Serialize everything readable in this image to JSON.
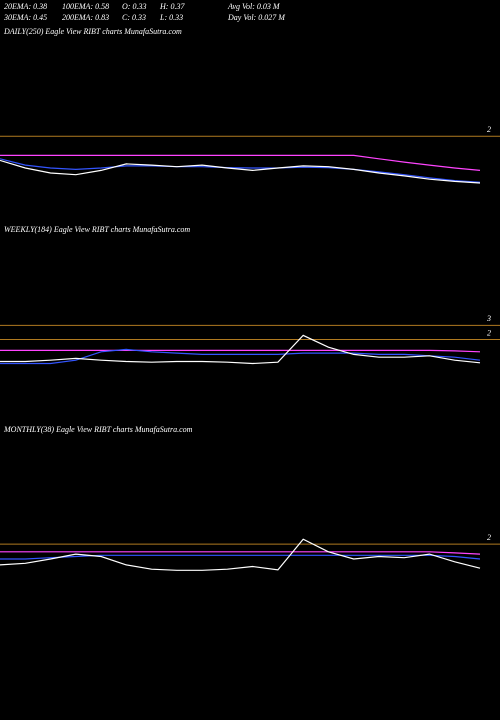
{
  "header": {
    "rows": [
      [
        "20EMA: 0.38",
        "100EMA: 0.58",
        "O: 0.33",
        "H: 0.37",
        "Avg Vol: 0.03 M"
      ],
      [
        "30EMA: 0.45",
        "200EMA: 0.83",
        "C: 0.33",
        "L: 0.33",
        "Day Vol: 0.027 M"
      ]
    ]
  },
  "chart_data": [
    {
      "type": "line",
      "title": "DAILY(250) Eagle   View  RIBT charts MunafaSutra.com",
      "categories": [
        null,
        null,
        null,
        null,
        null,
        null,
        null,
        null,
        null,
        null,
        null,
        null,
        null,
        null,
        null,
        null,
        null,
        null,
        null,
        null
      ],
      "log_scale": true,
      "ylim": [
        0.1,
        100
      ],
      "yticks": [
        2
      ],
      "grid": true,
      "grid_color": "#b07a20",
      "series": [
        {
          "color": "#ff44ff",
          "values": [
            0.92,
            0.92,
            0.92,
            0.92,
            0.92,
            0.92,
            0.92,
            0.92,
            0.92,
            0.92,
            0.92,
            0.92,
            0.92,
            0.92,
            0.92,
            0.8,
            0.7,
            0.62,
            0.55,
            0.5
          ]
        },
        {
          "color": "#3355ff",
          "values": [
            0.8,
            0.62,
            0.55,
            0.52,
            0.55,
            0.6,
            0.6,
            0.58,
            0.58,
            0.56,
            0.55,
            0.55,
            0.57,
            0.56,
            0.52,
            0.47,
            0.42,
            0.37,
            0.33,
            0.31
          ]
        },
        {
          "color": "#ffffff",
          "values": [
            0.75,
            0.55,
            0.45,
            0.42,
            0.5,
            0.65,
            0.62,
            0.58,
            0.62,
            0.55,
            0.5,
            0.55,
            0.6,
            0.58,
            0.52,
            0.45,
            0.4,
            0.35,
            0.32,
            0.3
          ]
        }
      ]
    },
    {
      "type": "line",
      "title": "WEEKLY(184) Eagle   View  RIBT charts MunafaSutra.com",
      "categories": [
        null,
        null,
        null,
        null,
        null,
        null,
        null,
        null,
        null,
        null,
        null,
        null,
        null,
        null,
        null,
        null,
        null,
        null,
        null,
        null
      ],
      "log_scale": true,
      "ylim": [
        0.35,
        35
      ],
      "yticks": [
        3,
        2
      ],
      "grid": true,
      "grid_color": "#b07a20",
      "series": [
        {
          "color": "#ff44ff",
          "values": [
            1.46,
            1.46,
            1.46,
            1.46,
            1.46,
            1.46,
            1.46,
            1.46,
            1.46,
            1.46,
            1.46,
            1.46,
            1.46,
            1.46,
            1.46,
            1.46,
            1.46,
            1.46,
            1.44,
            1.4
          ]
        },
        {
          "color": "#3355ff",
          "values": [
            1.0,
            1.0,
            1.0,
            1.1,
            1.4,
            1.5,
            1.4,
            1.35,
            1.3,
            1.3,
            1.3,
            1.3,
            1.35,
            1.35,
            1.35,
            1.3,
            1.3,
            1.25,
            1.2,
            1.1
          ]
        },
        {
          "color": "#ffffff",
          "values": [
            1.06,
            1.06,
            1.1,
            1.16,
            1.1,
            1.06,
            1.04,
            1.06,
            1.06,
            1.04,
            1.0,
            1.04,
            2.25,
            1.6,
            1.3,
            1.2,
            1.2,
            1.25,
            1.1,
            1.02
          ]
        }
      ]
    },
    {
      "type": "line",
      "title": "MONTHLY(38) Eagle   View  RIBT charts MunafaSutra.com",
      "categories": [
        null,
        null,
        null,
        null,
        null,
        null,
        null,
        null,
        null,
        null,
        null,
        null,
        null,
        null,
        null,
        null,
        null,
        null,
        null,
        null
      ],
      "log_scale": true,
      "ylim": [
        0.4,
        40
      ],
      "yticks": [
        2
      ],
      "grid": true,
      "grid_color": "#b07a20",
      "series": [
        {
          "color": "#ff44ff",
          "values": [
            1.6,
            1.6,
            1.6,
            1.6,
            1.6,
            1.6,
            1.6,
            1.6,
            1.6,
            1.6,
            1.6,
            1.6,
            1.6,
            1.6,
            1.6,
            1.6,
            1.6,
            1.6,
            1.55,
            1.5
          ]
        },
        {
          "color": "#3355ff",
          "values": [
            1.3,
            1.3,
            1.35,
            1.4,
            1.45,
            1.45,
            1.45,
            1.45,
            1.45,
            1.45,
            1.45,
            1.45,
            1.45,
            1.45,
            1.45,
            1.45,
            1.45,
            1.45,
            1.4,
            1.3
          ]
        },
        {
          "color": "#ffffff",
          "values": [
            1.1,
            1.15,
            1.3,
            1.5,
            1.4,
            1.1,
            0.97,
            0.94,
            0.94,
            0.97,
            1.05,
            0.95,
            2.3,
            1.6,
            1.3,
            1.4,
            1.35,
            1.5,
            1.2,
            1.0
          ]
        }
      ]
    }
  ]
}
